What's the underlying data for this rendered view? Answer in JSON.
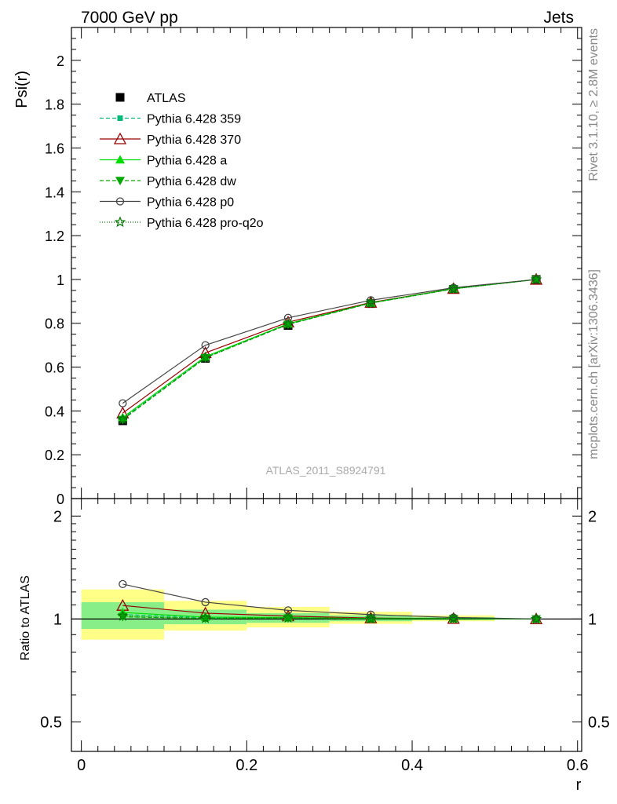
{
  "header": {
    "left": "7000 GeV pp",
    "right": "Jets"
  },
  "side_labels": {
    "rivet": "Rivet 3.1.10, ≥ 2.8M events",
    "mcplots": "mcplots.cern.ch [arXiv:1306.3436]"
  },
  "watermark": "ATLAS_2011_S8924791",
  "colors": {
    "atlas": "#000000",
    "p359": "#00bb77",
    "p370": "#990000",
    "a": "#00dd00",
    "dw": "#00aa00",
    "p0": "#444444",
    "pq2o": "#007700",
    "band_yellow": "#ffff88",
    "band_green": "#88ee88"
  },
  "chart_data": [
    {
      "type": "line",
      "ylabel": "Psi(r)",
      "ylim": [
        0,
        2.15
      ],
      "xlim": [
        -0.012,
        0.605
      ],
      "y_ticks": [
        "0",
        "0.2",
        "0.4",
        "0.6",
        "0.8",
        "1",
        "1.2",
        "1.4",
        "1.6",
        "1.8",
        "2"
      ],
      "x": [
        0.05,
        0.15,
        0.25,
        0.35,
        0.45,
        0.55
      ],
      "legend_position": "top-left",
      "series": [
        {
          "name": "ATLAS",
          "key": "atlas",
          "marker": "square",
          "dash": "",
          "values": [
            0.355,
            0.64,
            0.79,
            0.89,
            0.955,
            1.0
          ]
        },
        {
          "name": "Pythia 6.428 359",
          "key": "p359",
          "marker": "smallsquare",
          "dash": "5,3",
          "values": [
            0.365,
            0.645,
            0.795,
            0.893,
            0.958,
            1.0
          ]
        },
        {
          "name": "Pythia 6.428 370",
          "key": "p370",
          "marker": "triangle-open",
          "dash": "",
          "values": [
            0.39,
            0.665,
            0.805,
            0.895,
            0.958,
            1.0
          ]
        },
        {
          "name": "Pythia 6.428 a",
          "key": "a",
          "marker": "triangle",
          "dash": "",
          "values": [
            0.37,
            0.648,
            0.798,
            0.893,
            0.958,
            1.0
          ]
        },
        {
          "name": "Pythia 6.428 dw",
          "key": "dw",
          "marker": "triangle-down",
          "dash": "5,3",
          "values": [
            0.36,
            0.642,
            0.795,
            0.892,
            0.957,
            1.0
          ]
        },
        {
          "name": "Pythia 6.428 p0",
          "key": "p0",
          "marker": "circle-open",
          "dash": "",
          "values": [
            0.435,
            0.7,
            0.825,
            0.905,
            0.962,
            1.0
          ]
        },
        {
          "name": "Pythia 6.428 pro-q2o",
          "key": "pq2o",
          "marker": "star",
          "dash": "1,2",
          "values": [
            0.362,
            0.643,
            0.796,
            0.892,
            0.957,
            1.0
          ]
        }
      ]
    },
    {
      "type": "line",
      "ylabel": "Ratio to ATLAS",
      "xlabel": "r",
      "ylim": [
        0.41,
        2.25
      ],
      "y_scale": "log",
      "xlim": [
        -0.012,
        0.605
      ],
      "x_ticks": [
        "0",
        "0.2",
        "0.4",
        "0.6"
      ],
      "y_ticks": [
        "0.5",
        "1",
        "2"
      ],
      "bins": [
        [
          0.0,
          0.1
        ],
        [
          0.1,
          0.2
        ],
        [
          0.2,
          0.3
        ],
        [
          0.3,
          0.4
        ],
        [
          0.4,
          0.5
        ],
        [
          0.5,
          0.6
        ]
      ],
      "band_yellow": [
        [
          0.87,
          1.22
        ],
        [
          0.925,
          1.13
        ],
        [
          0.945,
          1.085
        ],
        [
          0.968,
          1.05
        ],
        [
          0.985,
          1.025
        ],
        [
          0.998,
          1.002
        ]
      ],
      "band_green": [
        [
          0.935,
          1.12
        ],
        [
          0.965,
          1.065
        ],
        [
          0.975,
          1.04
        ],
        [
          0.985,
          1.025
        ],
        [
          0.993,
          1.012
        ],
        [
          0.999,
          1.001
        ]
      ],
      "x": [
        0.05,
        0.15,
        0.25,
        0.35,
        0.45,
        0.55
      ],
      "series": [
        {
          "key": "p359",
          "marker": "smallsquare",
          "dash": "5,3",
          "values": [
            1.03,
            1.01,
            1.006,
            1.003,
            1.003,
            1.0
          ]
        },
        {
          "key": "p370",
          "marker": "triangle-open",
          "dash": "",
          "values": [
            1.095,
            1.04,
            1.02,
            1.006,
            1.003,
            1.0
          ]
        },
        {
          "key": "a",
          "marker": "triangle",
          "dash": "",
          "values": [
            1.045,
            1.013,
            1.01,
            1.003,
            1.003,
            1.0
          ]
        },
        {
          "key": "dw",
          "marker": "triangle-down",
          "dash": "5,3",
          "values": [
            1.015,
            1.003,
            1.006,
            1.002,
            1.002,
            1.0
          ]
        },
        {
          "key": "p0",
          "marker": "circle-open",
          "dash": "",
          "values": [
            1.265,
            1.12,
            1.06,
            1.03,
            1.01,
            1.0
          ]
        },
        {
          "key": "pq2o",
          "marker": "star",
          "dash": "1,2",
          "values": [
            1.02,
            1.005,
            1.008,
            1.002,
            1.002,
            1.0
          ]
        }
      ]
    }
  ]
}
